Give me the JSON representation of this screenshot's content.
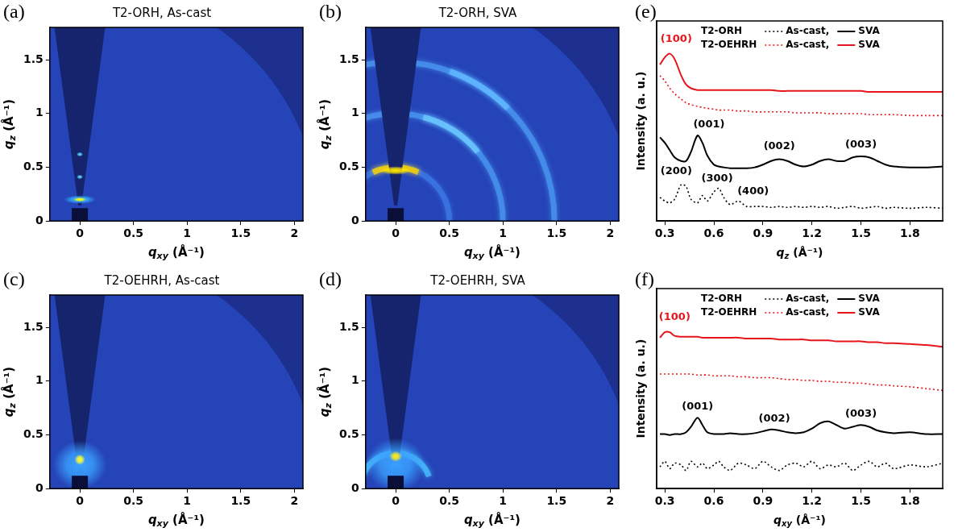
{
  "chart_data": [
    {
      "type": "heatmap",
      "panel_label": "(a)",
      "title": "T2-ORH, As-cast",
      "x_label": "qxy (Å⁻¹)",
      "y_label": "qz (Å⁻¹)",
      "xlim": [
        -0.28,
        2.08
      ],
      "xticks": [
        0,
        0.5,
        1,
        1.5,
        2
      ],
      "ylim": [
        0,
        1.8
      ],
      "yticks": [
        0,
        0.5,
        1,
        1.5
      ],
      "grid": false,
      "spots": [
        {
          "qxy": 0,
          "qz": 0.2,
          "width": 0.3,
          "height": 0.08,
          "color": "#38b4ff"
        },
        {
          "qxy": 0,
          "qz": 0.2,
          "width": 0.12,
          "height": 0.04,
          "color": "#ffff00"
        },
        {
          "qxy": 0,
          "qz": 0.41,
          "width": 0.06,
          "height": 0.04,
          "color": "#5ad2ff"
        },
        {
          "qxy": 0,
          "qz": 0.62,
          "width": 0.06,
          "height": 0.04,
          "color": "#5ad2ff"
        }
      ],
      "rings": []
    },
    {
      "type": "heatmap",
      "panel_label": "(b)",
      "title": "T2-ORH, SVA",
      "x_label": "qxy (Å⁻¹)",
      "y_label": "qz (Å⁻¹)",
      "xlim": [
        -0.28,
        2.08
      ],
      "xticks": [
        0,
        0.5,
        1,
        1.5,
        2
      ],
      "ylim": [
        0,
        1.8
      ],
      "yticks": [
        0,
        0.5,
        1,
        1.5
      ],
      "grid": false,
      "spots": [
        {
          "qxy": 0,
          "qz": 0.47,
          "width": 0.3,
          "height": 0.08,
          "color": "#ffe600"
        }
      ],
      "rings": [
        {
          "q": 0.5,
          "from": 0,
          "to": 180,
          "color": "#3c78e6"
        },
        {
          "q": 1.0,
          "from": 0,
          "to": 180,
          "color": "#4a96f0"
        },
        {
          "q": 1.0,
          "from": 40,
          "to": 75,
          "color": "#6cc8ff"
        },
        {
          "q": 1.48,
          "from": 0,
          "to": 180,
          "color": "#4a96f0"
        },
        {
          "q": 1.48,
          "from": 45,
          "to": 70,
          "color": "#60b8ff"
        },
        {
          "q": 0.5,
          "from": 65,
          "to": 115,
          "color": "#ffd400"
        }
      ]
    },
    {
      "type": "heatmap",
      "panel_label": "(c)",
      "title": "T2-OEHRH, As-cast",
      "x_label": "qxy (Å⁻¹)",
      "y_label": "qz (Å⁻¹)",
      "xlim": [
        -0.28,
        2.08
      ],
      "xticks": [
        0,
        0.5,
        1,
        1.5,
        2
      ],
      "ylim": [
        0,
        1.8
      ],
      "yticks": [
        0,
        0.5,
        1,
        1.5
      ],
      "grid": false,
      "spots": [
        {
          "qxy": 0,
          "qz": 0.22,
          "width": 0.5,
          "height": 0.45,
          "color": "#3aa0ff"
        },
        {
          "qxy": 0,
          "qz": 0.27,
          "width": 0.1,
          "height": 0.1,
          "color": "#ffff30"
        }
      ],
      "rings": []
    },
    {
      "type": "heatmap",
      "panel_label": "(d)",
      "title": "T2-OEHRH, SVA",
      "x_label": "qxy (Å⁻¹)",
      "y_label": "qz (Å⁻¹)",
      "xlim": [
        -0.28,
        2.08
      ],
      "xticks": [
        0,
        0.5,
        1,
        1.5,
        2
      ],
      "ylim": [
        0,
        1.8
      ],
      "yticks": [
        0,
        0.5,
        1,
        1.5
      ],
      "grid": false,
      "spots": [
        {
          "qxy": 0,
          "qz": 0.22,
          "width": 0.55,
          "height": 0.5,
          "color": "#3aa0ff"
        },
        {
          "qxy": 0,
          "qz": 0.3,
          "width": 0.12,
          "height": 0.1,
          "color": "#ffee20"
        }
      ],
      "rings": [
        {
          "q": 0.33,
          "from": 20,
          "to": 160,
          "color": "#48c0ff"
        }
      ]
    },
    {
      "type": "line",
      "panel_label": "(e)",
      "x_label": "qz (Å⁻¹)",
      "y_label": "Intensity (a. u.)",
      "xlim": [
        0.25,
        2.0
      ],
      "xticks": [
        0.3,
        0.6,
        0.9,
        1.2,
        1.5,
        1.8
      ],
      "ylim": [
        0,
        11
      ],
      "grid": false,
      "tick_labels": "x",
      "legend": "upper left",
      "x": [
        0.27,
        0.3,
        0.33,
        0.36,
        0.4,
        0.43,
        0.46,
        0.5,
        0.53,
        0.56,
        0.6,
        0.63,
        0.66,
        0.7,
        0.75,
        0.8,
        0.85,
        0.9,
        0.95,
        1.0,
        1.05,
        1.1,
        1.15,
        1.2,
        1.25,
        1.3,
        1.35,
        1.4,
        1.45,
        1.5,
        1.55,
        1.6,
        1.65,
        1.7,
        1.8,
        1.9,
        2.0
      ],
      "series": [
        {
          "sample": "T2-ORH",
          "name": "As-cast,",
          "color": "#000000",
          "line_style": "dotted",
          "values": [
            1.3,
            1.1,
            1.0,
            1.2,
            2.0,
            1.9,
            1.2,
            1.0,
            1.4,
            1.1,
            1.6,
            1.8,
            1.3,
            0.9,
            1.1,
            0.8,
            0.8,
            0.8,
            0.75,
            0.8,
            0.75,
            0.8,
            0.75,
            0.8,
            0.75,
            0.8,
            0.7,
            0.75,
            0.8,
            0.7,
            0.75,
            0.8,
            0.7,
            0.75,
            0.7,
            0.75,
            0.7
          ]
        },
        {
          "sample": "T2-ORH",
          "name": "SVA",
          "color": "#000000",
          "line_style": "solid",
          "values": [
            4.6,
            4.3,
            3.9,
            3.5,
            3.3,
            3.3,
            3.8,
            4.7,
            4.3,
            3.6,
            3.1,
            3.0,
            2.95,
            2.9,
            2.9,
            2.9,
            2.95,
            3.1,
            3.3,
            3.4,
            3.3,
            3.1,
            3.0,
            3.1,
            3.3,
            3.4,
            3.3,
            3.3,
            3.5,
            3.55,
            3.5,
            3.3,
            3.1,
            3.0,
            2.95,
            2.95,
            3.0
          ]
        },
        {
          "sample": "T2-OEHRH",
          "name": "As-cast,",
          "color": "#e8141c",
          "line_style": "dotted",
          "values": [
            8.0,
            7.7,
            7.3,
            7.0,
            6.7,
            6.5,
            6.4,
            6.3,
            6.25,
            6.2,
            6.15,
            6.1,
            6.1,
            6.1,
            6.05,
            6.05,
            6.0,
            6.0,
            6.0,
            6.0,
            6.0,
            5.95,
            5.95,
            5.95,
            5.95,
            5.9,
            5.9,
            5.9,
            5.9,
            5.9,
            5.85,
            5.85,
            5.85,
            5.85,
            5.8,
            5.8,
            5.8
          ]
        },
        {
          "sample": "T2-OEHRH",
          "name": "SVA",
          "color": "#e8141c",
          "line_style": "solid",
          "values": [
            8.6,
            9.0,
            9.2,
            8.9,
            8.0,
            7.5,
            7.3,
            7.2,
            7.2,
            7.2,
            7.2,
            7.2,
            7.2,
            7.2,
            7.2,
            7.2,
            7.2,
            7.2,
            7.2,
            7.15,
            7.15,
            7.15,
            7.15,
            7.15,
            7.15,
            7.15,
            7.15,
            7.15,
            7.15,
            7.15,
            7.1,
            7.1,
            7.1,
            7.1,
            7.1,
            7.1,
            7.1
          ]
        }
      ],
      "annotations": [
        {
          "text": "(100)",
          "x": 0.37,
          "y": 10.0,
          "color": "#e8141c"
        },
        {
          "text": "(001)",
          "x": 0.57,
          "y": 5.3,
          "color": "#000000"
        },
        {
          "text": "(002)",
          "x": 1.0,
          "y": 4.1,
          "color": "#000000"
        },
        {
          "text": "(003)",
          "x": 1.5,
          "y": 4.2,
          "color": "#000000"
        },
        {
          "text": "(200)",
          "x": 0.37,
          "y": 2.75,
          "color": "#000000"
        },
        {
          "text": "(300)",
          "x": 0.62,
          "y": 2.35,
          "color": "#000000"
        },
        {
          "text": "(400)",
          "x": 0.84,
          "y": 1.6,
          "color": "#000000"
        }
      ]
    },
    {
      "type": "line",
      "panel_label": "(f)",
      "x_label": "qxy (Å⁻¹)",
      "y_label": "Intensity (a. u.)",
      "xlim": [
        0.25,
        2.0
      ],
      "xticks": [
        0.3,
        0.6,
        0.9,
        1.2,
        1.5,
        1.8
      ],
      "ylim": [
        0,
        11
      ],
      "grid": false,
      "tick_labels": "x",
      "legend": "upper left",
      "x": [
        0.27,
        0.3,
        0.33,
        0.36,
        0.4,
        0.43,
        0.46,
        0.5,
        0.53,
        0.56,
        0.6,
        0.63,
        0.66,
        0.7,
        0.75,
        0.8,
        0.85,
        0.9,
        0.95,
        1.0,
        1.05,
        1.1,
        1.15,
        1.2,
        1.25,
        1.3,
        1.35,
        1.4,
        1.45,
        1.5,
        1.55,
        1.6,
        1.65,
        1.7,
        1.8,
        1.9,
        2.0
      ],
      "series": [
        {
          "sample": "T2-ORH",
          "name": "As-cast,",
          "color": "#000000",
          "line_style": "dotted",
          "values": [
            1.2,
            1.5,
            1.1,
            1.4,
            1.3,
            1.0,
            1.5,
            1.2,
            1.4,
            1.1,
            1.3,
            1.5,
            1.2,
            1.0,
            1.4,
            1.3,
            1.1,
            1.5,
            1.2,
            1.0,
            1.3,
            1.4,
            1.2,
            1.5,
            1.1,
            1.3,
            1.2,
            1.4,
            1.0,
            1.3,
            1.5,
            1.2,
            1.4,
            1.1,
            1.3,
            1.2,
            1.4
          ]
        },
        {
          "sample": "T2-ORH",
          "name": "SVA",
          "color": "#000000",
          "line_style": "solid",
          "values": [
            3.0,
            3.0,
            2.95,
            3.0,
            3.0,
            3.1,
            3.4,
            3.9,
            3.5,
            3.1,
            3.0,
            3.0,
            3.0,
            3.05,
            3.0,
            3.0,
            3.05,
            3.15,
            3.25,
            3.2,
            3.1,
            3.05,
            3.1,
            3.3,
            3.6,
            3.7,
            3.5,
            3.3,
            3.4,
            3.5,
            3.4,
            3.2,
            3.1,
            3.05,
            3.1,
            3.0,
            3.0
          ]
        },
        {
          "sample": "T2-OEHRH",
          "name": "As-cast,",
          "color": "#e8141c",
          "line_style": "dotted",
          "values": [
            6.3,
            6.3,
            6.3,
            6.3,
            6.3,
            6.3,
            6.3,
            6.25,
            6.25,
            6.25,
            6.2,
            6.2,
            6.2,
            6.2,
            6.15,
            6.15,
            6.1,
            6.1,
            6.1,
            6.05,
            6.0,
            6.0,
            5.95,
            5.95,
            5.9,
            5.9,
            5.85,
            5.85,
            5.8,
            5.8,
            5.75,
            5.7,
            5.7,
            5.65,
            5.6,
            5.5,
            5.4
          ]
        },
        {
          "sample": "T2-OEHRH",
          "name": "SVA",
          "color": "#e8141c",
          "line_style": "solid",
          "values": [
            8.3,
            8.6,
            8.6,
            8.4,
            8.35,
            8.35,
            8.35,
            8.35,
            8.3,
            8.3,
            8.3,
            8.3,
            8.3,
            8.3,
            8.3,
            8.25,
            8.25,
            8.25,
            8.25,
            8.2,
            8.2,
            8.2,
            8.2,
            8.15,
            8.15,
            8.15,
            8.1,
            8.1,
            8.1,
            8.1,
            8.05,
            8.05,
            8.0,
            8.0,
            7.95,
            7.9,
            7.8
          ]
        }
      ],
      "annotations": [
        {
          "text": "(100)",
          "x": 0.36,
          "y": 9.4,
          "color": "#e8141c"
        },
        {
          "text": "(001)",
          "x": 0.5,
          "y": 4.5,
          "color": "#000000"
        },
        {
          "text": "(002)",
          "x": 0.97,
          "y": 3.85,
          "color": "#000000"
        },
        {
          "text": "(003)",
          "x": 1.5,
          "y": 4.1,
          "color": "#000000"
        }
      ]
    }
  ]
}
